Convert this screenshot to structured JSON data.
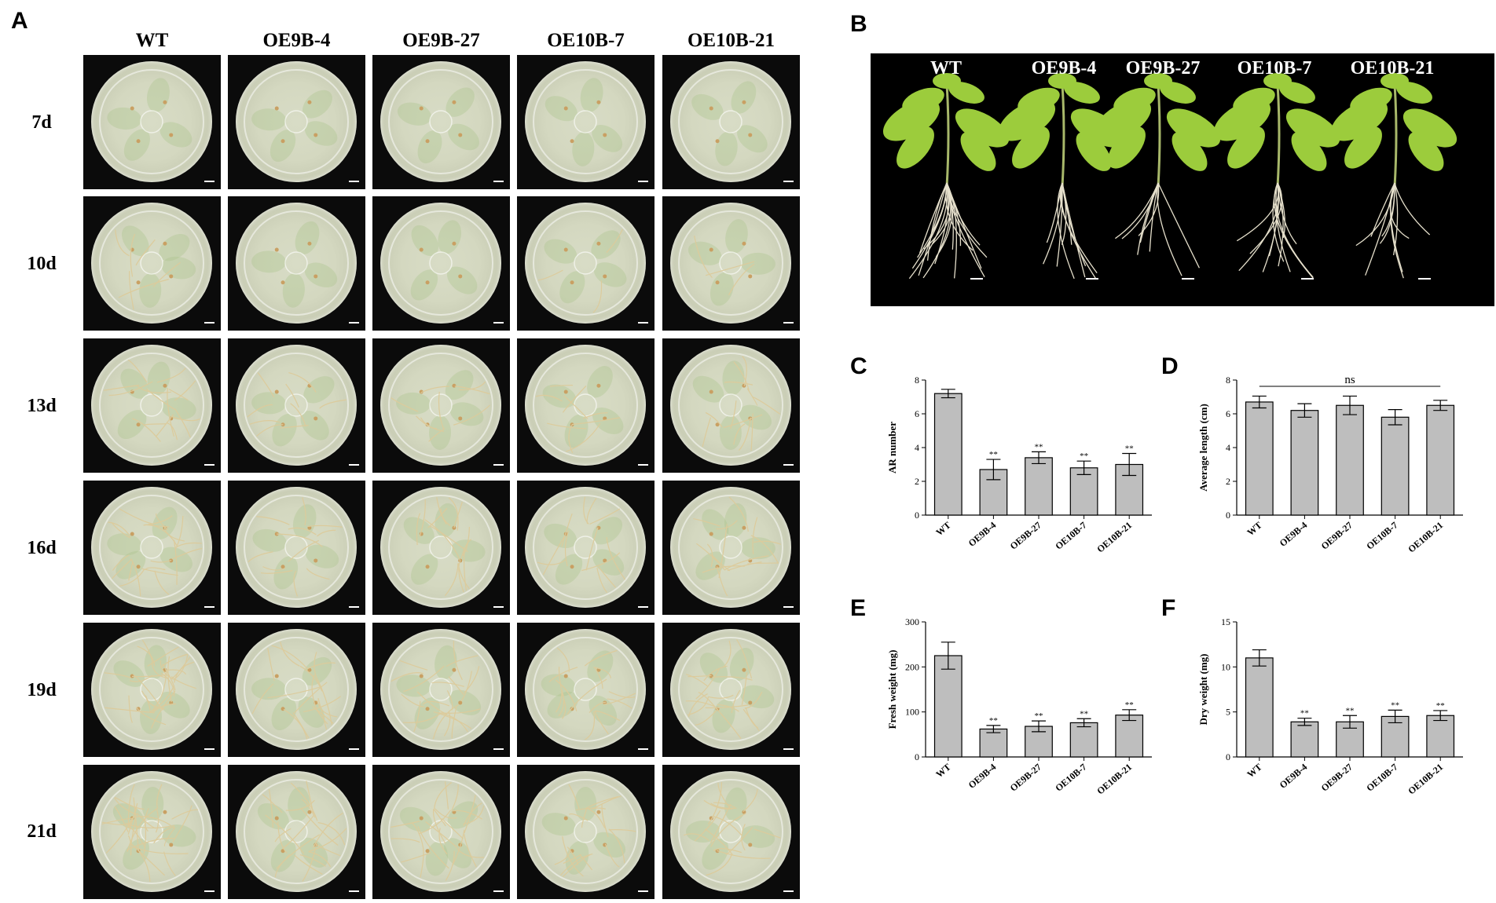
{
  "panel_labels": {
    "a": "A",
    "b": "B",
    "c": "C",
    "d": "D",
    "e": "E",
    "f": "F"
  },
  "panelA": {
    "columns": [
      "WT",
      "OE9B-4",
      "OE9B-27",
      "OE10B-7",
      "OE10B-21"
    ],
    "rows": [
      "7d",
      "10d",
      "13d",
      "16d",
      "19d",
      "21d"
    ],
    "root_density": [
      [
        0,
        0,
        0,
        0,
        0
      ],
      [
        2,
        0,
        0,
        1,
        1
      ],
      [
        5,
        3,
        3,
        3,
        4
      ],
      [
        7,
        4,
        5,
        4,
        5
      ],
      [
        9,
        6,
        7,
        6,
        7
      ],
      [
        10,
        7,
        8,
        6,
        6
      ]
    ]
  },
  "panelB": {
    "labels": [
      "WT",
      "OE9B-4",
      "OE9B-27",
      "OE10B-7",
      "OE10B-21"
    ]
  },
  "colors": {
    "bar": "#bebebe",
    "bar_stroke": "#000000",
    "dish": "#d4d8c0",
    "root": "#d8c9a0",
    "leaf": "#9ccc3c"
  },
  "chart_data": [
    {
      "panel": "C",
      "type": "bar",
      "categories": [
        "WT",
        "OE9B-4",
        "OE9B-27",
        "OE10B-7",
        "OE10B-21"
      ],
      "values": [
        7.2,
        2.7,
        3.4,
        2.8,
        3.0
      ],
      "errors": [
        0.25,
        0.6,
        0.35,
        0.4,
        0.65
      ],
      "significance": [
        "",
        "**",
        "**",
        "**",
        "**"
      ],
      "ylabel": "AR number",
      "ylim": [
        0,
        8
      ],
      "yticks": [
        "0",
        "2",
        "4",
        "6",
        "8"
      ]
    },
    {
      "panel": "D",
      "type": "bar",
      "categories": [
        "WT",
        "OE9B-4",
        "OE9B-27",
        "OE10B-7",
        "OE10B-21"
      ],
      "values": [
        6.7,
        6.2,
        6.5,
        5.8,
        6.5
      ],
      "errors": [
        0.35,
        0.4,
        0.55,
        0.45,
        0.3
      ],
      "significance": [
        "",
        "",
        "",
        "",
        ""
      ],
      "annotation": "ns",
      "ylabel": "Average length (cm)",
      "ylim": [
        0,
        8
      ],
      "yticks": [
        "0",
        "2",
        "4",
        "6",
        "8"
      ]
    },
    {
      "panel": "E",
      "type": "bar",
      "categories": [
        "WT",
        "OE9B-4",
        "OE9B-27",
        "OE10B-7",
        "OE10B-21"
      ],
      "values": [
        225,
        62,
        68,
        76,
        93
      ],
      "errors": [
        30,
        8,
        12,
        9,
        12
      ],
      "significance": [
        "",
        "**",
        "**",
        "**",
        "**"
      ],
      "ylabel": "Fresh weight (mg)",
      "ylim": [
        0,
        300
      ],
      "yticks": [
        "0",
        "100",
        "200",
        "300"
      ]
    },
    {
      "panel": "F",
      "type": "bar",
      "categories": [
        "WT",
        "OE9B-4",
        "OE9B-27",
        "OE10B-7",
        "OE10B-21"
      ],
      "values": [
        11.0,
        3.9,
        3.9,
        4.5,
        4.6
      ],
      "errors": [
        0.9,
        0.4,
        0.7,
        0.7,
        0.55
      ],
      "significance": [
        "",
        "**",
        "**",
        "**",
        "**"
      ],
      "ylabel": "Dry weight (mg)",
      "ylim": [
        0,
        15
      ],
      "yticks": [
        "0",
        "5",
        "10",
        "15"
      ]
    }
  ]
}
